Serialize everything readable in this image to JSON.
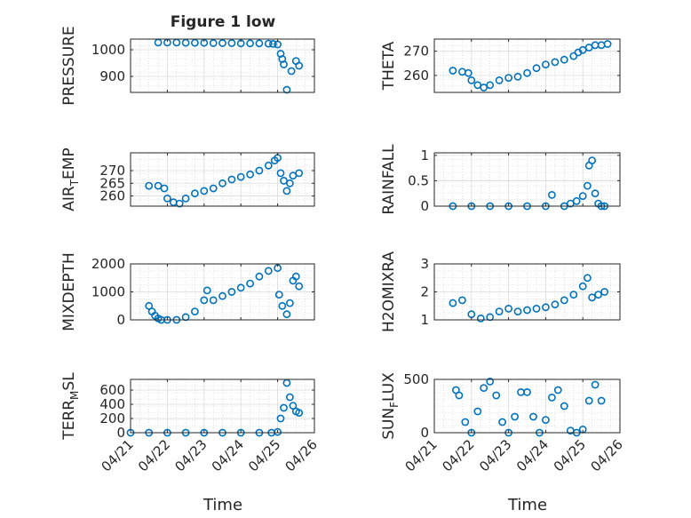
{
  "figure": {
    "title": "Figure 1 low",
    "xlabel": "Time",
    "x_ticks": [
      "04/21",
      "04/22",
      "04/23",
      "04/24",
      "04/25",
      "04/26"
    ],
    "marker_color": "#0072BD"
  },
  "chart_data": [
    {
      "type": "scatter",
      "ylabel": "PRESSURE",
      "ylim": [
        840,
        1040
      ],
      "yticks": [
        "900",
        "1000"
      ],
      "grid": true,
      "x": [
        "04/21 18:00",
        "04/22 00:00",
        "04/22 06:00",
        "04/22 12:00",
        "04/22 18:00",
        "04/23 00:00",
        "04/23 06:00",
        "04/23 12:00",
        "04/23 18:00",
        "04/24 00:00",
        "04/24 06:00",
        "04/24 12:00",
        "04/24 18:00",
        "04/24 21:00",
        "04/25 00:00",
        "04/25 02:00",
        "04/25 03:00",
        "04/25 04:00",
        "04/25 06:00",
        "04/25 09:00",
        "04/25 12:00",
        "04/25 14:00"
      ],
      "y": [
        1027,
        1027,
        1027,
        1026,
        1026,
        1026,
        1025,
        1025,
        1025,
        1024,
        1024,
        1024,
        1023,
        1022,
        1020,
        985,
        965,
        945,
        850,
        920,
        958,
        940
      ]
    },
    {
      "type": "scatter",
      "ylabel": "THETA",
      "ylim": [
        253,
        275
      ],
      "yticks": [
        "260",
        "270"
      ],
      "grid": true,
      "x": [
        "04/21 12:00",
        "04/21 18:00",
        "04/21 22:00",
        "04/22 00:00",
        "04/22 04:00",
        "04/22 08:00",
        "04/22 12:00",
        "04/22 18:00",
        "04/23 00:00",
        "04/23 06:00",
        "04/23 12:00",
        "04/23 18:00",
        "04/24 00:00",
        "04/24 06:00",
        "04/24 12:00",
        "04/24 18:00",
        "04/24 21:00",
        "04/25 00:00",
        "04/25 04:00",
        "04/25 08:00",
        "04/25 12:00",
        "04/25 16:00"
      ],
      "y": [
        262,
        261.5,
        261,
        258,
        256,
        255,
        256,
        258,
        259,
        259.5,
        261,
        263,
        264.5,
        265.5,
        266.5,
        268,
        269.5,
        270.5,
        271.5,
        272.5,
        272.5,
        273
      ]
    },
    {
      "type": "scatter",
      "ylabel": "AIR_TEMP",
      "ylabel_main": "AIR",
      "ylabel_sub": "T",
      "ylabel_rest": "EMP",
      "ylim": [
        256,
        277
      ],
      "yticks": [
        "260",
        "265",
        "270"
      ],
      "grid": true,
      "x": [
        "04/21 12:00",
        "04/21 18:00",
        "04/21 22:00",
        "04/22 00:00",
        "04/22 04:00",
        "04/22 08:00",
        "04/22 12:00",
        "04/22 18:00",
        "04/23 00:00",
        "04/23 06:00",
        "04/23 12:00",
        "04/23 18:00",
        "04/24 00:00",
        "04/24 06:00",
        "04/24 12:00",
        "04/24 18:00",
        "04/24 22:00",
        "04/25 00:00",
        "04/25 02:00",
        "04/25 04:00",
        "04/25 06:00",
        "04/25 08:00",
        "04/25 10:00",
        "04/25 14:00"
      ],
      "y": [
        264,
        264,
        263,
        259,
        257.5,
        257,
        259,
        261,
        262,
        263,
        265,
        266.5,
        267.5,
        268.5,
        270,
        272,
        274,
        275,
        269,
        266,
        262,
        265,
        268,
        269
      ]
    },
    {
      "type": "scatter",
      "ylabel": "RAINFALL",
      "ylim": [
        0,
        1.05
      ],
      "yticks": [
        "0",
        "0.5",
        "1"
      ],
      "grid": true,
      "x": [
        "04/21 12:00",
        "04/22 00:00",
        "04/22 12:00",
        "04/23 00:00",
        "04/23 12:00",
        "04/24 00:00",
        "04/24 04:00",
        "04/24 12:00",
        "04/24 16:00",
        "04/24 20:00",
        "04/25 00:00",
        "04/25 03:00",
        "04/25 04:00",
        "04/25 06:00",
        "04/25 08:00",
        "04/25 10:00",
        "04/25 12:00",
        "04/25 14:00"
      ],
      "y": [
        0,
        0,
        0,
        0,
        0,
        0,
        0.22,
        0,
        0.05,
        0.1,
        0.2,
        0.4,
        0.8,
        0.9,
        0.25,
        0.05,
        0,
        0
      ]
    },
    {
      "type": "scatter",
      "ylabel": "MIXDEPTH",
      "ylim": [
        0,
        2000
      ],
      "yticks": [
        "0",
        "1000",
        "2000"
      ],
      "grid": true,
      "x": [
        "04/21 12:00",
        "04/21 14:00",
        "04/21 16:00",
        "04/21 18:00",
        "04/21 20:00",
        "04/22 00:00",
        "04/22 06:00",
        "04/22 12:00",
        "04/22 18:00",
        "04/23 00:00",
        "04/23 02:00",
        "04/23 06:00",
        "04/23 12:00",
        "04/23 18:00",
        "04/24 00:00",
        "04/24 06:00",
        "04/24 12:00",
        "04/24 18:00",
        "04/25 00:00",
        "04/25 01:00",
        "04/25 03:00",
        "04/25 06:00",
        "04/25 08:00",
        "04/25 10:00",
        "04/25 12:00",
        "04/25 14:00"
      ],
      "y": [
        500,
        300,
        150,
        50,
        0,
        0,
        0,
        100,
        300,
        700,
        1050,
        700,
        850,
        1000,
        1150,
        1300,
        1550,
        1750,
        1850,
        900,
        500,
        200,
        600,
        1400,
        1550,
        1200
      ]
    },
    {
      "type": "scatter",
      "ylabel": "H2OMIXRA",
      "ylim": [
        1,
        3
      ],
      "yticks": [
        "1",
        "2",
        "3"
      ],
      "grid": true,
      "x": [
        "04/21 12:00",
        "04/21 18:00",
        "04/22 00:00",
        "04/22 06:00",
        "04/22 12:00",
        "04/22 18:00",
        "04/23 00:00",
        "04/23 06:00",
        "04/23 12:00",
        "04/23 18:00",
        "04/24 00:00",
        "04/24 06:00",
        "04/24 12:00",
        "04/24 18:00",
        "04/25 00:00",
        "04/25 03:00",
        "04/25 06:00",
        "04/25 10:00",
        "04/25 14:00"
      ],
      "y": [
        1.6,
        1.7,
        1.2,
        1.05,
        1.1,
        1.3,
        1.4,
        1.3,
        1.35,
        1.4,
        1.45,
        1.55,
        1.7,
        1.9,
        2.2,
        2.5,
        1.8,
        1.9,
        2.0
      ]
    },
    {
      "type": "scatter",
      "ylabel": "TERR_MSL",
      "ylabel_main": "TERR",
      "ylabel_sub": "M",
      "ylabel_rest": "SL",
      "ylim": [
        0,
        750
      ],
      "yticks": [
        "0",
        "200",
        "400",
        "600"
      ],
      "grid": true,
      "x": [
        "04/21 00:00",
        "04/21 12:00",
        "04/22 00:00",
        "04/22 12:00",
        "04/23 00:00",
        "04/23 12:00",
        "04/24 00:00",
        "04/24 12:00",
        "04/24 20:00",
        "04/25 00:00",
        "04/25 02:00",
        "04/25 04:00",
        "04/25 06:00",
        "04/25 08:00",
        "04/25 10:00",
        "04/25 12:00",
        "04/25 14:00"
      ],
      "y": [
        0,
        0,
        0,
        0,
        0,
        0,
        0,
        0,
        0,
        10,
        200,
        350,
        700,
        500,
        380,
        300,
        280
      ]
    },
    {
      "type": "scatter",
      "ylabel": "SUN_FLUX",
      "ylabel_main": "SUN",
      "ylabel_sub": "F",
      "ylabel_rest": "LUX",
      "ylim": [
        0,
        500
      ],
      "yticks": [
        "0",
        "500"
      ],
      "grid": true,
      "x": [
        "04/21 14:00",
        "04/21 16:00",
        "04/21 20:00",
        "04/22 00:00",
        "04/22 04:00",
        "04/22 08:00",
        "04/22 12:00",
        "04/22 16:00",
        "04/22 20:00",
        "04/23 00:00",
        "04/23 04:00",
        "04/23 08:00",
        "04/23 12:00",
        "04/23 16:00",
        "04/23 20:00",
        "04/24 00:00",
        "04/24 04:00",
        "04/24 08:00",
        "04/24 12:00",
        "04/24 16:00",
        "04/24 20:00",
        "04/25 00:00",
        "04/25 04:00",
        "04/25 08:00",
        "04/25 12:00"
      ],
      "y": [
        400,
        350,
        100,
        0,
        200,
        420,
        480,
        350,
        100,
        0,
        150,
        380,
        380,
        150,
        0,
        120,
        330,
        400,
        250,
        20,
        0,
        30,
        300,
        450,
        300
      ]
    }
  ]
}
